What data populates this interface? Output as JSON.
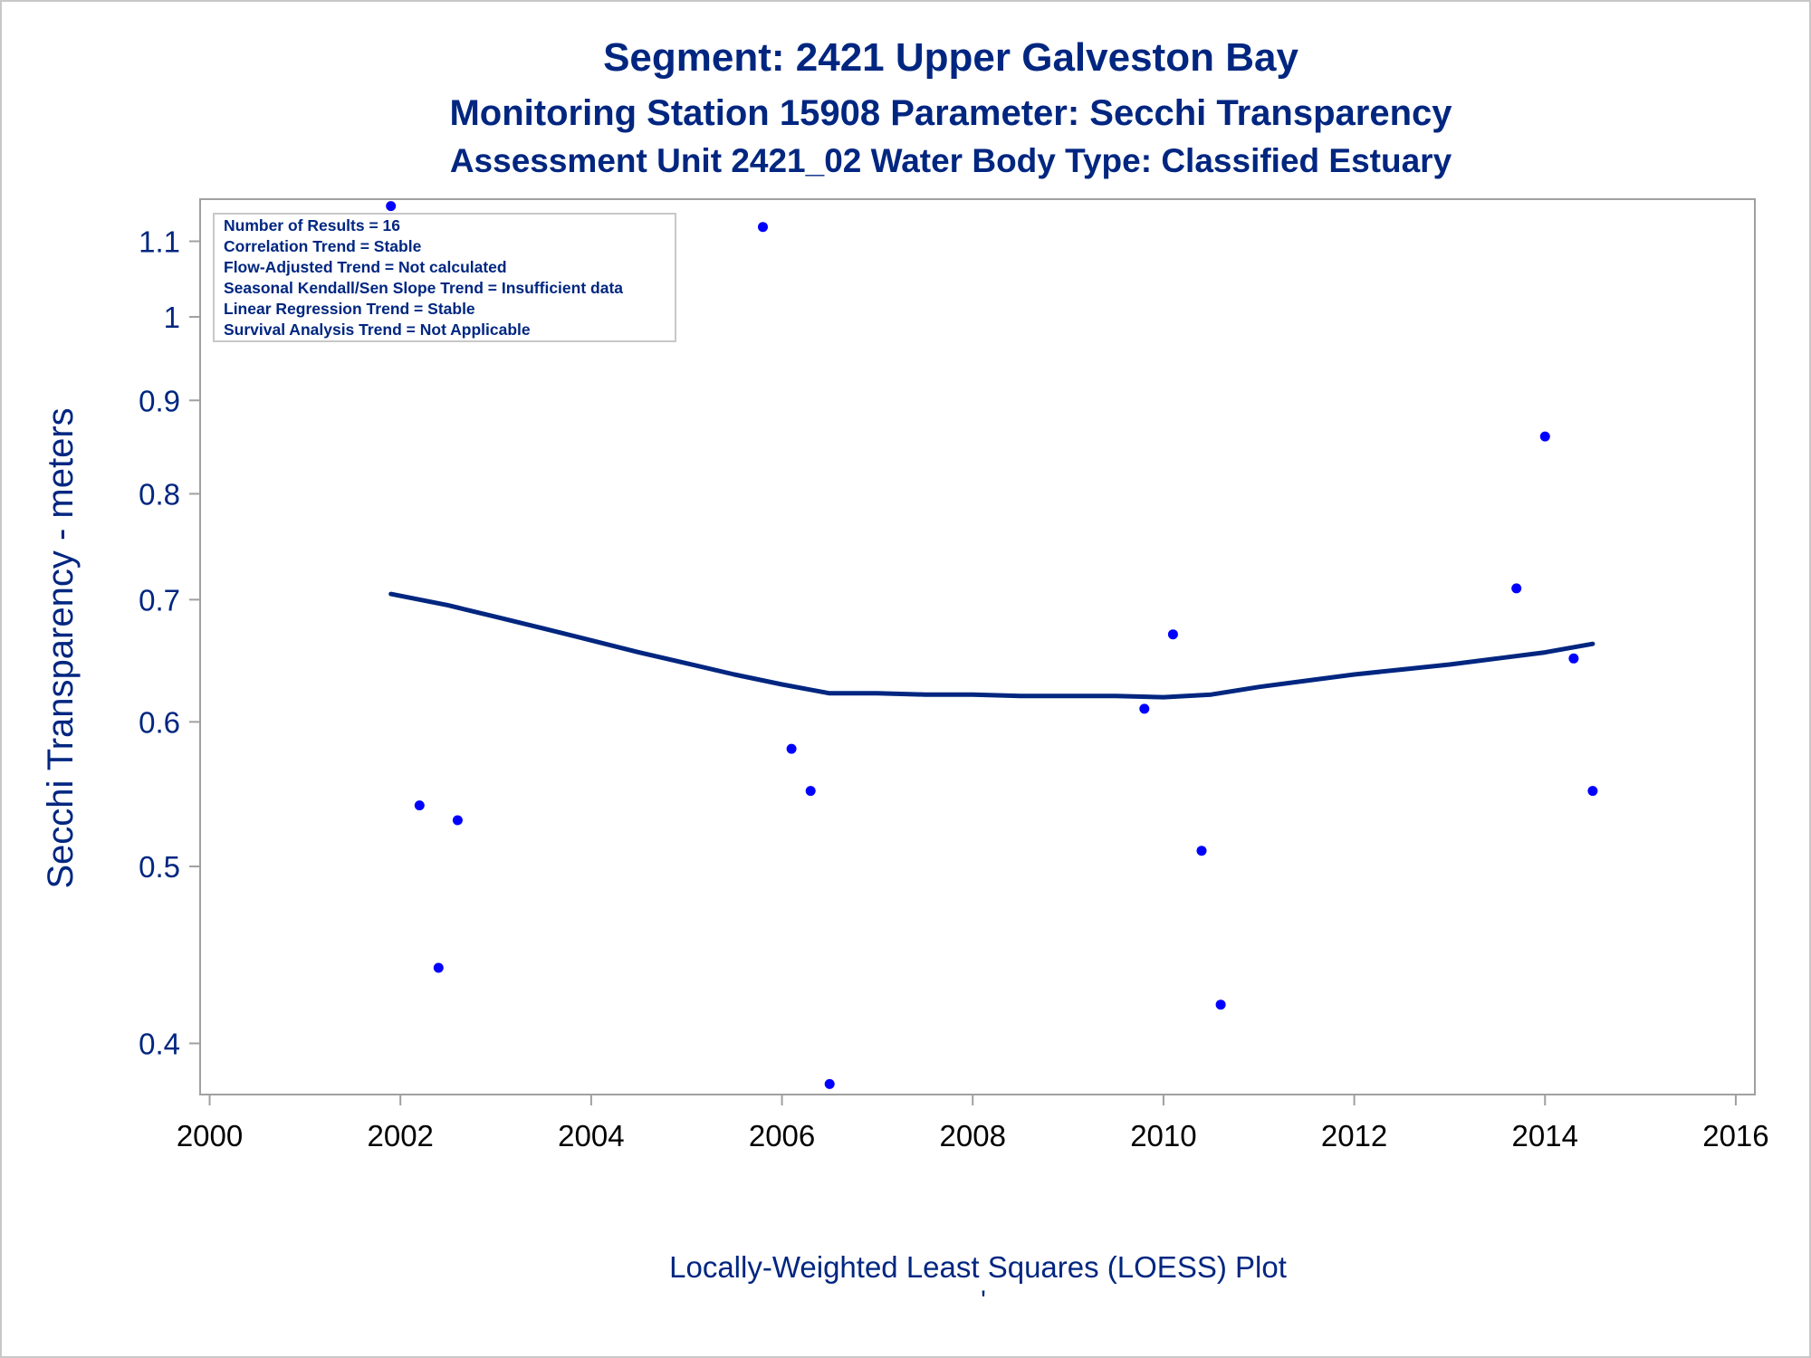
{
  "titles": {
    "line1": "Segment: 2421  Upper Galveston Bay",
    "line2": "Monitoring Station 15908 Parameter: Secchi Transparency",
    "line3": "Assessment Unit 2421_02   Water Body Type: Classified Estuary"
  },
  "info_box": [
    "Number of Results = 16",
    "Correlation Trend = Stable",
    "Flow-Adjusted Trend = Not calculated",
    "Seasonal Kendall/Sen Slope Trend = Insufficient data",
    "Linear Regression Trend = Stable",
    "Survival Analysis Trend = Not Applicable"
  ],
  "footnote": "Locally-Weighted Least Squares (LOESS) Plot",
  "footnote_mark": "'",
  "colors": {
    "text": "#002680",
    "points": "#0000ff",
    "loess": "#002680",
    "frame": "#a0a0a0"
  },
  "chart_data": {
    "type": "scatter",
    "ylabel": "Secchi Transparency - meters",
    "xlabel": "",
    "x_scale": "linear",
    "y_scale": "log",
    "xlim": [
      1999.9,
      2016.2
    ],
    "ylim": [
      0.375,
      1.16
    ],
    "x_ticks": [
      2000,
      2002,
      2004,
      2006,
      2008,
      2010,
      2012,
      2014,
      2016
    ],
    "y_ticks": [
      0.4,
      0.5,
      0.6,
      0.7,
      0.8,
      0.9,
      1,
      1.1
    ],
    "y_tick_labels": [
      "0.4",
      "0.5",
      "0.6",
      "0.7",
      "0.8",
      "0.9",
      "1",
      "1.1"
    ],
    "legend": "none",
    "grid": false,
    "series": [
      {
        "kind": "points",
        "x": [
          2001.9,
          2002.2,
          2002.4,
          2002.6,
          2005.8,
          2006.1,
          2006.3,
          2006.5,
          2009.8,
          2010.1,
          2010.4,
          2010.6,
          2013.7,
          2014.0,
          2014.3,
          2014.5
        ],
        "y": [
          1.15,
          0.54,
          0.44,
          0.53,
          1.12,
          0.58,
          0.55,
          0.38,
          0.61,
          0.67,
          0.51,
          0.42,
          0.71,
          0.86,
          0.65,
          0.55
        ]
      },
      {
        "kind": "loess",
        "x": [
          2001.9,
          2002.5,
          2003.0,
          2003.5,
          2004.0,
          2004.5,
          2005.0,
          2005.5,
          2006.0,
          2006.5,
          2007.0,
          2007.5,
          2008.0,
          2008.5,
          2009.0,
          2009.5,
          2010.0,
          2010.5,
          2011.0,
          2011.5,
          2012.0,
          2012.5,
          2013.0,
          2013.5,
          2014.0,
          2014.5
        ],
        "y": [
          0.705,
          0.695,
          0.685,
          0.675,
          0.665,
          0.655,
          0.646,
          0.637,
          0.629,
          0.622,
          0.622,
          0.621,
          0.621,
          0.62,
          0.62,
          0.62,
          0.619,
          0.621,
          0.627,
          0.632,
          0.637,
          0.641,
          0.645,
          0.65,
          0.655,
          0.662
        ]
      }
    ]
  }
}
